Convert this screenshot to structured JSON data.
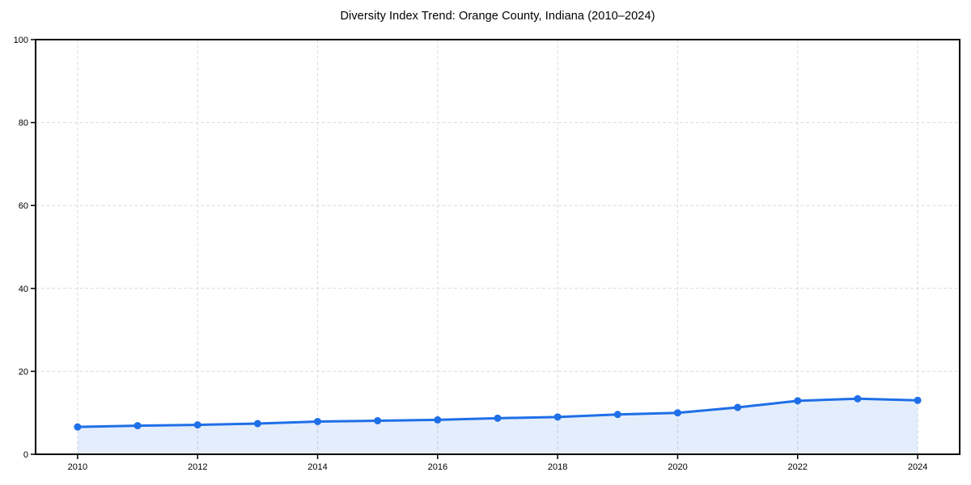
{
  "page": {
    "background": "#ffffff"
  },
  "chart_data": {
    "type": "area",
    "title": "Diversity Index Trend: Orange County, Indiana (2010–2024)",
    "x": [
      2010,
      2011,
      2012,
      2013,
      2014,
      2015,
      2016,
      2017,
      2018,
      2019,
      2020,
      2021,
      2022,
      2023,
      2024
    ],
    "values": [
      6.6,
      6.9,
      7.1,
      7.4,
      7.9,
      8.1,
      8.3,
      8.7,
      9.0,
      9.6,
      10.0,
      11.3,
      12.9,
      13.4,
      13.0
    ],
    "xlabel": "",
    "ylabel": "",
    "ylim": [
      0,
      100
    ],
    "xlim_years": [
      2009.3,
      2024.7
    ],
    "xticks": [
      2010,
      2012,
      2014,
      2016,
      2018,
      2020,
      2022,
      2024
    ],
    "yticks": [
      0,
      20,
      40,
      60,
      80,
      100
    ],
    "grid": true,
    "legend": "none",
    "colors": {
      "line": "#1e6fe8",
      "fill": "#1e6fe8",
      "fill_opacity": 0.12,
      "grid": "#dcdcdc",
      "spine": "#000000",
      "tick_text": "#000000"
    }
  }
}
